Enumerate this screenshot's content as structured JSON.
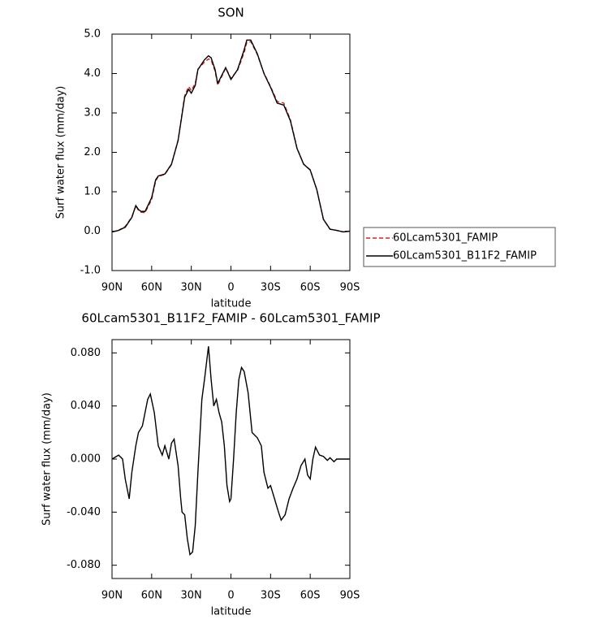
{
  "chart_data": [
    {
      "type": "line",
      "title": "SON",
      "xlabel": "latitude",
      "ylabel": "Surf water flux (mm/day)",
      "x": [
        90,
        85,
        80,
        75,
        72,
        70,
        68,
        65,
        60,
        57,
        55,
        50,
        45,
        40,
        35,
        32,
        30,
        27,
        25,
        20,
        17,
        15,
        12,
        10,
        7,
        4,
        0,
        -5,
        -10,
        -12,
        -15,
        -20,
        -25,
        -30,
        -35,
        -40,
        -45,
        -50,
        -55,
        -60,
        -65,
        -70,
        -75,
        -80,
        -85,
        -90
      ],
      "series": [
        {
          "name": "60Lcam5301_FAMIP",
          "color": "#d62020",
          "dash": "dashed",
          "values": [
            -0.02,
            0.02,
            0.12,
            0.36,
            0.64,
            0.53,
            0.48,
            0.47,
            0.8,
            1.27,
            1.39,
            1.44,
            1.69,
            2.31,
            3.44,
            3.67,
            3.57,
            3.75,
            4.11,
            4.29,
            4.37,
            4.34,
            4.06,
            3.71,
            3.92,
            4.14,
            3.88,
            4.08,
            4.53,
            4.79,
            4.81,
            4.48,
            4.01,
            3.67,
            3.29,
            3.25,
            2.83,
            2.11,
            1.7,
            1.56,
            1.05,
            0.3,
            0.05,
            0.02,
            -0.02,
            0.0
          ]
        },
        {
          "name": "60Lcam5301_B11F2_FAMIP",
          "color": "#000000",
          "dash": "solid",
          "values": [
            -0.02,
            0.02,
            0.1,
            0.35,
            0.65,
            0.55,
            0.5,
            0.5,
            0.85,
            1.3,
            1.4,
            1.45,
            1.7,
            2.3,
            3.4,
            3.6,
            3.5,
            3.7,
            4.1,
            4.35,
            4.45,
            4.4,
            4.1,
            3.75,
            3.95,
            4.15,
            3.85,
            4.1,
            4.6,
            4.85,
            4.85,
            4.5,
            4.0,
            3.65,
            3.25,
            3.2,
            2.8,
            2.1,
            1.7,
            1.55,
            1.05,
            0.3,
            0.05,
            0.02,
            -0.02,
            0.0
          ]
        }
      ],
      "xlim": [
        90,
        -90
      ],
      "xticks": [
        {
          "value": 90,
          "label": "90N"
        },
        {
          "value": 60,
          "label": "60N"
        },
        {
          "value": 30,
          "label": "30N"
        },
        0,
        {
          "value": -30,
          "label": "30S"
        },
        {
          "value": -60,
          "label": "60S"
        },
        {
          "value": -90,
          "label": "90S"
        }
      ],
      "ylim": [
        -1,
        5
      ],
      "yticks": [
        {
          "value": -1,
          "label": "-1.0"
        },
        {
          "value": 0,
          "label": "0.0"
        },
        {
          "value": 1,
          "label": "1.0"
        },
        {
          "value": 2,
          "label": "2.0"
        },
        {
          "value": 3,
          "label": "3.0"
        },
        {
          "value": 4,
          "label": "4.0"
        },
        {
          "value": 5,
          "label": "5.0"
        }
      ],
      "legend": "right"
    },
    {
      "type": "line",
      "title": "60Lcam5301_B11F2_FAMIP - 60Lcam5301_FAMIP",
      "xlabel": "latitude",
      "ylabel": "Surf water flux (mm/day)",
      "x": [
        90,
        85,
        82,
        80,
        77,
        75,
        72,
        70,
        67,
        65,
        63,
        61,
        58,
        55,
        52,
        50,
        47,
        45,
        43,
        40,
        38,
        37,
        35,
        33,
        31,
        29,
        27,
        25,
        22,
        20,
        17,
        15,
        13,
        11,
        9,
        7,
        5,
        3,
        1,
        0,
        -2,
        -4,
        -6,
        -8,
        -10,
        -13,
        -16,
        -20,
        -23,
        -25,
        -28,
        -30,
        -33,
        -36,
        -38,
        -41,
        -44,
        -47,
        -50,
        -53,
        -56,
        -58,
        -60,
        -62,
        -64,
        -67,
        -70,
        -73,
        -75,
        -78,
        -80,
        -85,
        -90
      ],
      "series": [
        {
          "color": "#000000",
          "dash": "solid",
          "values": [
            0,
            0.003,
            0,
            -0.015,
            -0.03,
            -0.01,
            0.01,
            0.02,
            0.025,
            0.035,
            0.045,
            0.049,
            0.035,
            0.01,
            0.003,
            0.01,
            0,
            0.012,
            0.015,
            -0.005,
            -0.03,
            -0.04,
            -0.042,
            -0.06,
            -0.072,
            -0.07,
            -0.05,
            -0.01,
            0.045,
            0.06,
            0.085,
            0.06,
            0.04,
            0.045,
            0.035,
            0.028,
            0.01,
            -0.02,
            -0.032,
            -0.03,
            0,
            0.035,
            0.06,
            0.069,
            0.066,
            0.05,
            0.02,
            0.016,
            0.01,
            -0.01,
            -0.022,
            -0.02,
            -0.03,
            -0.04,
            -0.046,
            -0.042,
            -0.03,
            -0.022,
            -0.015,
            -0.005,
            0,
            -0.012,
            -0.015,
            0,
            0.009,
            0.003,
            0.002,
            -0.001,
            0.001,
            -0.002,
            0,
            0,
            0
          ]
        }
      ],
      "xlim": [
        90,
        -90
      ],
      "xticks": [
        {
          "value": 90,
          "label": "90N"
        },
        {
          "value": 60,
          "label": "60N"
        },
        {
          "value": 30,
          "label": "30N"
        },
        0,
        {
          "value": -30,
          "label": "30S"
        },
        {
          "value": -60,
          "label": "60S"
        },
        {
          "value": -90,
          "label": "90S"
        }
      ],
      "ylim": [
        -0.09,
        0.09
      ],
      "yticks": [
        {
          "value": -0.08,
          "label": "-0.080"
        },
        {
          "value": -0.04,
          "label": "-0.040"
        },
        {
          "value": 0,
          "label": "0.000"
        },
        {
          "value": 0.04,
          "label": "0.040"
        },
        {
          "value": 0.08,
          "label": "0.080"
        }
      ]
    }
  ]
}
